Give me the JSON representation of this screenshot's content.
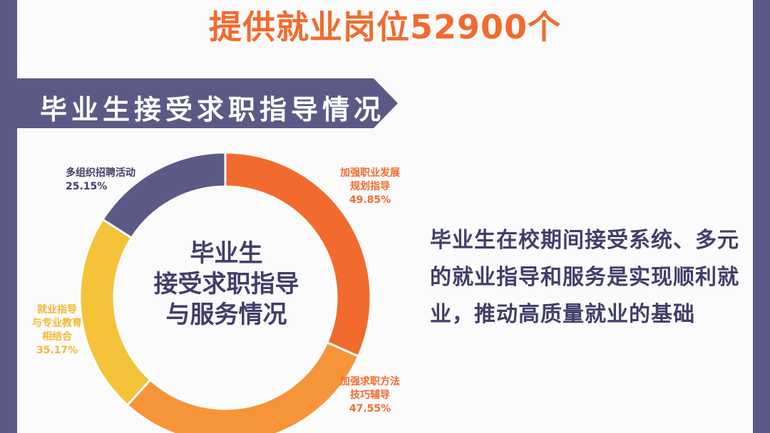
{
  "headline": "提供就业岗位52900个",
  "banner": {
    "title": "毕业生接受求职指导情况",
    "color": "#5b5a86"
  },
  "center_label": [
    "毕业生",
    "接受求职指导",
    "与服务情况"
  ],
  "description": "毕业生在校期间接受系统、多元的就业指导和服务是实现顺利就业，推动高质量就业的基础",
  "chart_data": {
    "type": "pie",
    "donut": true,
    "title": "毕业生接受求职指导与服务情况",
    "slices": [
      {
        "label": "加强职业发展规划指导",
        "value": 49.85,
        "display": "49.85%",
        "color": "#f26b2e"
      },
      {
        "label": "加强求职方法技巧辅导",
        "value": 47.55,
        "display": "47.55%",
        "color": "#f6943a"
      },
      {
        "label": "就业指导与专业教育相结合",
        "value": 35.17,
        "display": "35.17%",
        "color": "#f4c33a"
      },
      {
        "label": "多组织招聘活动",
        "value": 25.15,
        "display": "25.15%",
        "color": "#5b5a86"
      }
    ]
  },
  "labels": {
    "s0": [
      "加强职业发展",
      "规划指导",
      "49.85%"
    ],
    "s1": [
      "加强求职方法",
      "技巧辅导",
      "47.55%"
    ],
    "s2": [
      "就业指导",
      "与专业教育",
      "相结合",
      "35.17%"
    ],
    "s3": [
      "多组织招聘活动",
      "25.15%"
    ]
  }
}
